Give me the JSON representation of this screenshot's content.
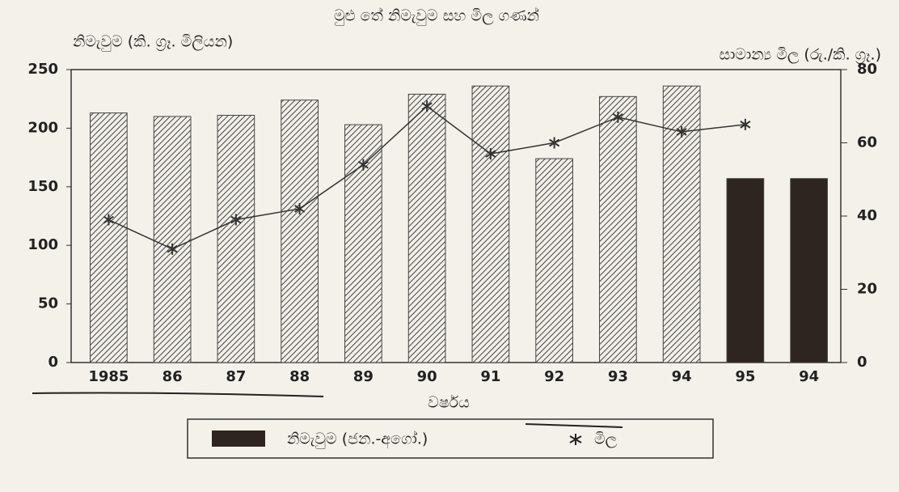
{
  "chart_data": {
    "type": "bar",
    "title": "මුළු තේ නිමැවුම සහ මිල ගණන්",
    "y_label": "නිමැවුම (කි. ග්‍රෑ. මිලියන)",
    "y2_label": "සාමාන්‍ය මිල (රු./කි. ග්‍රෑ.)",
    "x_label": "වර්ෂය",
    "categories": [
      "1985",
      "86",
      "87",
      "88",
      "89",
      "90",
      "91",
      "92",
      "93",
      "94",
      "95",
      "94"
    ],
    "series": [
      {
        "type": "bar",
        "color": "#555555",
        "hatch": true,
        "values": [
          213,
          210,
          211,
          224,
          203,
          229,
          236,
          174,
          227,
          236,
          null,
          null
        ]
      },
      {
        "type": "bar",
        "name": "නිමැවුම (ජන.-අගෝ.)",
        "color": "#2e2420",
        "values": [
          null,
          null,
          null,
          null,
          null,
          null,
          null,
          null,
          null,
          null,
          157,
          157
        ]
      },
      {
        "type": "line",
        "name": "මිල",
        "color": "#333333",
        "axis": "y2",
        "values": [
          39,
          31,
          39,
          42,
          54,
          70,
          57,
          60,
          67,
          63,
          65,
          null
        ]
      }
    ],
    "ylim": [
      0,
      250
    ],
    "yticks": [
      0,
      50,
      100,
      150,
      200,
      250
    ],
    "y2lim": [
      0,
      80
    ],
    "y2ticks": [
      0,
      20,
      40,
      60,
      80
    ],
    "grid": false,
    "legend": "bottom"
  }
}
